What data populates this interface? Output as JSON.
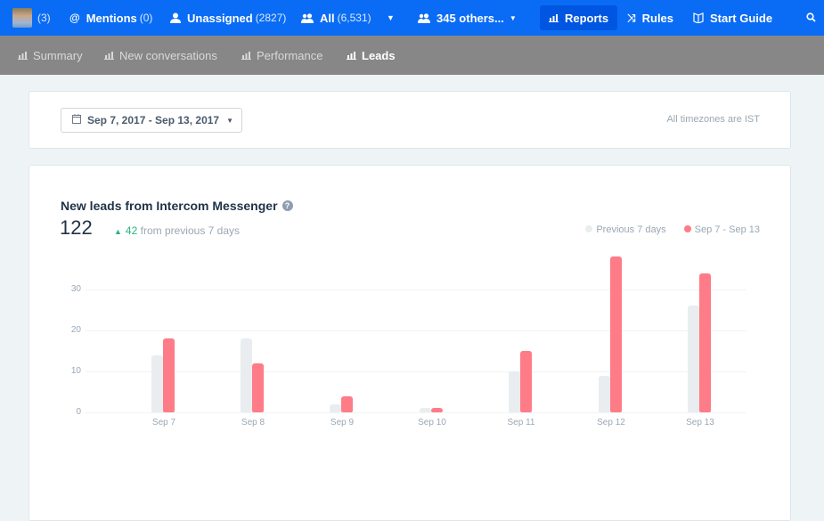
{
  "topbar": {
    "avatar_count": "(3)",
    "mentions": {
      "label": "Mentions",
      "count": "(0)",
      "icon": "at-icon"
    },
    "unassigned": {
      "label": "Unassigned",
      "count": "(2827)",
      "icon": "user-icon"
    },
    "all": {
      "label": "All",
      "count": "(6,531)",
      "icon": "users-icon"
    },
    "others": {
      "label": "345 others...",
      "icon": "users-icon"
    },
    "reports": {
      "label": "Reports",
      "icon": "bar-chart-icon"
    },
    "rules": {
      "label": "Rules",
      "icon": "shuffle-icon"
    },
    "start_guide": {
      "label": "Start Guide",
      "icon": "book-icon"
    },
    "search_icon": "search-icon",
    "color": "#0a6cf5"
  },
  "subnav": {
    "tabs": [
      {
        "label": "Summary",
        "active": false
      },
      {
        "label": "New conversations",
        "active": false
      },
      {
        "label": "Performance",
        "active": false
      },
      {
        "label": "Leads",
        "active": true
      }
    ]
  },
  "filters": {
    "date_range": "Sep 7, 2017 - Sep 13, 2017",
    "timezone_note": "All timezones are IST"
  },
  "report": {
    "title": "New leads from Intercom Messenger",
    "help": "?",
    "total": "122",
    "delta_value": "42",
    "delta_text": "from previous 7 days",
    "legend": [
      {
        "label": "Previous 7 days",
        "color": "#e9edf0"
      },
      {
        "label": "Sep 7 - Sep 13",
        "color": "#fe7c87"
      }
    ]
  },
  "chart_data": {
    "type": "bar",
    "title": "New leads from Intercom Messenger",
    "categories": [
      "Sep 7",
      "Sep 8",
      "Sep 9",
      "Sep 10",
      "Sep 11",
      "Sep 12",
      "Sep 13"
    ],
    "series": [
      {
        "name": "Previous 7 days",
        "color": "#e9edf0",
        "values": [
          14,
          18,
          2,
          1,
          10,
          9,
          26
        ]
      },
      {
        "name": "Sep 7 - Sep 13",
        "color": "#fe7c87",
        "values": [
          18,
          12,
          4,
          1,
          15,
          38,
          34
        ]
      }
    ],
    "yticks": [
      "0",
      "10",
      "20",
      "30"
    ],
    "ylim": [
      0,
      40
    ],
    "xlabel": "",
    "ylabel": "",
    "grid": true,
    "legend_position": "top-right"
  }
}
